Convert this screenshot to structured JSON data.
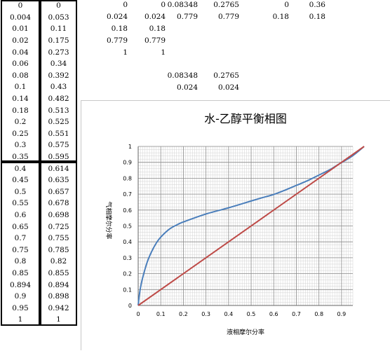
{
  "left_table": {
    "rows": [
      [
        "0",
        "0"
      ],
      [
        "0.004",
        "0.053"
      ],
      [
        "0.01",
        "0.11"
      ],
      [
        "0.02",
        "0.175"
      ],
      [
        "0.04",
        "0.273"
      ],
      [
        "0.06",
        "0.34"
      ],
      [
        "0.08",
        "0.392"
      ],
      [
        "0.1",
        "0.43"
      ],
      [
        "0.14",
        "0.482"
      ],
      [
        "0.18",
        "0.513"
      ],
      [
        "0.2",
        "0.525"
      ],
      [
        "0.25",
        "0.551"
      ],
      [
        "0.3",
        "0.575"
      ],
      [
        "0.35",
        "0.595"
      ],
      [
        "0.4",
        "0.614"
      ],
      [
        "0.45",
        "0.635"
      ],
      [
        "0.5",
        "0.657"
      ],
      [
        "0.55",
        "0.678"
      ],
      [
        "0.6",
        "0.698"
      ],
      [
        "0.65",
        "0.725"
      ],
      [
        "0.7",
        "0.755"
      ],
      [
        "0.75",
        "0.785"
      ],
      [
        "0.8",
        "0.82"
      ],
      [
        "0.85",
        "0.855"
      ],
      [
        "0.894",
        "0.894"
      ],
      [
        "0.9",
        "0.898"
      ],
      [
        "0.95",
        "0.942"
      ],
      [
        "1",
        "1"
      ]
    ]
  },
  "sheet_cells": [
    {
      "text": "0",
      "row": 0,
      "col": 0
    },
    {
      "text": "0",
      "row": 0,
      "col": 1
    },
    {
      "text": "0.08348",
      "row": 0,
      "col": 2
    },
    {
      "text": "0.2765",
      "row": 0,
      "col": 3
    },
    {
      "text": "0",
      "row": 0,
      "col": 4
    },
    {
      "text": "0.36",
      "row": 0,
      "col": 5
    },
    {
      "text": "0.024",
      "row": 1,
      "col": 0
    },
    {
      "text": "0.024",
      "row": 1,
      "col": 1
    },
    {
      "text": "0.779",
      "row": 1,
      "col": 2
    },
    {
      "text": "0.779",
      "row": 1,
      "col": 3
    },
    {
      "text": "0.18",
      "row": 1,
      "col": 4
    },
    {
      "text": "0.18",
      "row": 1,
      "col": 5
    },
    {
      "text": "0.18",
      "row": 2,
      "col": 0
    },
    {
      "text": "0.18",
      "row": 2,
      "col": 1
    },
    {
      "text": "0.779",
      "row": 3,
      "col": 0
    },
    {
      "text": "0.779",
      "row": 3,
      "col": 1
    },
    {
      "text": "1",
      "row": 4,
      "col": 0
    },
    {
      "text": "1",
      "row": 4,
      "col": 1
    },
    {
      "text": "0.08348",
      "row": 6,
      "col": 2
    },
    {
      "text": "0.2765",
      "row": 6,
      "col": 3
    },
    {
      "text": "0.024",
      "row": 7,
      "col": 2
    },
    {
      "text": "0.024",
      "row": 7,
      "col": 3
    }
  ],
  "chart_data": {
    "type": "line",
    "title": "水-乙醇平衡相图",
    "xlabel": "液相摩尔分率",
    "ylabel": "气相摩尔分率",
    "xlim": [
      0,
      0.95
    ],
    "ylim": [
      0,
      1
    ],
    "x_ticks": [
      "0",
      "0.1",
      "0.2",
      "0.3",
      "0.4",
      "0.5",
      "0.6",
      "0.7",
      "0.8",
      "0.9"
    ],
    "y_ticks": [
      "0",
      "0.1",
      "0.2",
      "0.3",
      "0.4",
      "0.5",
      "0.6",
      "0.7",
      "0.8",
      "0.9",
      "1"
    ],
    "grid": true,
    "legend": "none",
    "series": [
      {
        "color": "#4a7ebb",
        "x": [
          0,
          0.004,
          0.01,
          0.02,
          0.04,
          0.06,
          0.08,
          0.1,
          0.14,
          0.18,
          0.2,
          0.25,
          0.3,
          0.35,
          0.4,
          0.45,
          0.5,
          0.55,
          0.6,
          0.65,
          0.7,
          0.75,
          0.8,
          0.85,
          0.894,
          0.9,
          0.95,
          1
        ],
        "y": [
          0,
          0.053,
          0.11,
          0.175,
          0.273,
          0.34,
          0.392,
          0.43,
          0.482,
          0.513,
          0.525,
          0.551,
          0.575,
          0.595,
          0.614,
          0.635,
          0.657,
          0.678,
          0.698,
          0.725,
          0.755,
          0.785,
          0.82,
          0.855,
          0.894,
          0.898,
          0.942,
          1
        ]
      },
      {
        "color": "#be4b48",
        "x": [
          0,
          1
        ],
        "y": [
          0,
          1
        ]
      }
    ]
  }
}
